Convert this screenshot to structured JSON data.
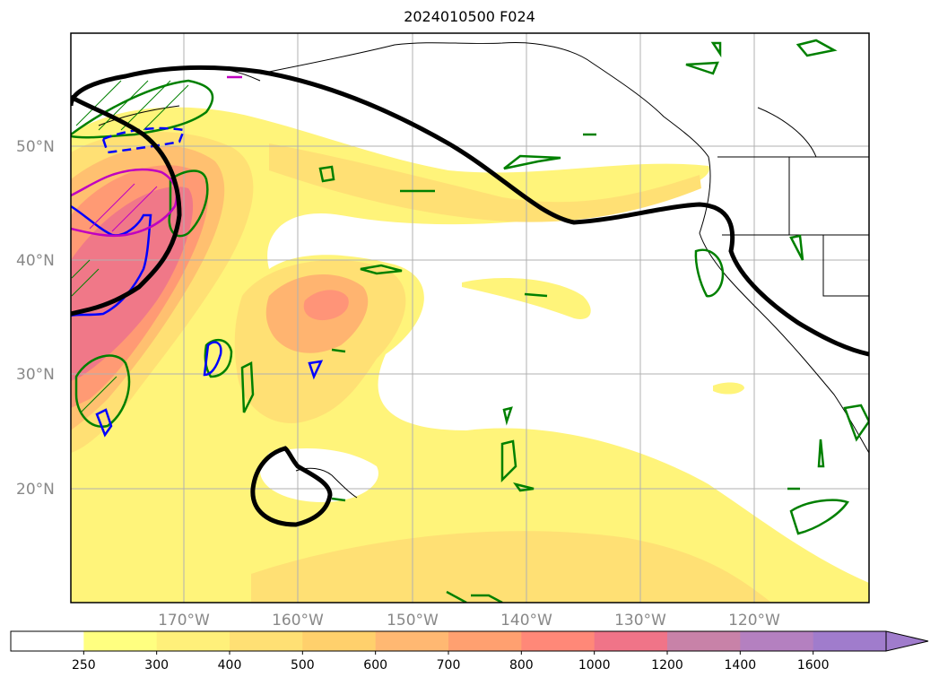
{
  "title": "2024010500 F024",
  "map": {
    "lat_labels": [
      "50°N",
      "40°N",
      "30°N",
      "20°N"
    ],
    "lon_labels": [
      "170°W",
      "160°W",
      "150°W",
      "140°W",
      "130°W",
      "120°W"
    ],
    "extent": {
      "lon": [
        -180,
        -110
      ],
      "lat": [
        10,
        60
      ]
    }
  },
  "colorbar": {
    "ticks": [
      "250",
      "300",
      "400",
      "500",
      "600",
      "700",
      "800",
      "1000",
      "1200",
      "1400",
      "1600"
    ],
    "colors": [
      "#ffffff",
      "#ffff80",
      "#fff07a",
      "#ffe074",
      "#ffd06c",
      "#ffb872",
      "#ffa070",
      "#ff8878",
      "#f07488",
      "#c882a8",
      "#b480c0",
      "#a07ccc"
    ],
    "extend": "max"
  },
  "colors": {
    "black_contour": "#000000",
    "green_contour": "#008000",
    "blue_contour": "#0000ff",
    "magenta_contour": "#c000c0"
  }
}
